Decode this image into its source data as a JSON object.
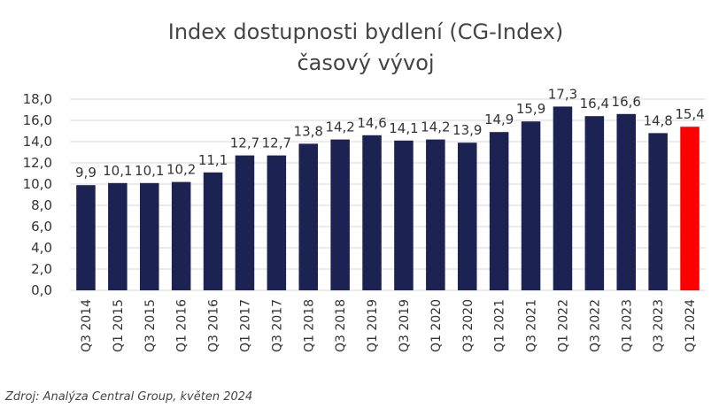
{
  "chart_data": {
    "type": "bar",
    "title": "Index dostupnosti bydlení (CG-Index)",
    "subtitle": "časový vývoj",
    "categories": [
      "Q3 2014",
      "Q1 2015",
      "Q3 2015",
      "Q1 2016",
      "Q3 2016",
      "Q1 2017",
      "Q3 2017",
      "Q1 2018",
      "Q3 2018",
      "Q1 2019",
      "Q3 2019",
      "Q1 2020",
      "Q3 2020",
      "Q1 2021",
      "Q3 2021",
      "Q1 2022",
      "Q3 2022",
      "Q1 2023",
      "Q3 2023",
      "Q1 2024"
    ],
    "values": [
      9.9,
      10.1,
      10.1,
      10.2,
      11.1,
      12.7,
      12.7,
      13.8,
      14.2,
      14.6,
      14.1,
      14.2,
      13.9,
      14.9,
      15.9,
      17.3,
      16.4,
      16.6,
      14.8,
      15.4
    ],
    "value_labels": [
      "9,9",
      "10,1",
      "10,1",
      "10,2",
      "11,1",
      "12,7",
      "12,7",
      "13,8",
      "14,2",
      "14,6",
      "14,1",
      "14,2",
      "13,9",
      "14,9",
      "15,9",
      "17,3",
      "16,4",
      "16,6",
      "14,8",
      "15,4"
    ],
    "ytick_labels": [
      "0,0",
      "2,0",
      "4,0",
      "6,0",
      "8,0",
      "10,0",
      "12,0",
      "14,0",
      "16,0",
      "18,0"
    ],
    "ylim": [
      0,
      18
    ],
    "grid": true,
    "colors": {
      "bar": "#1c2251",
      "highlight": "#ff0000",
      "grid": "#d9d9d9"
    },
    "highlight_index": 19
  },
  "source": "Zdroj: Analýza Central Group, květen 2024"
}
